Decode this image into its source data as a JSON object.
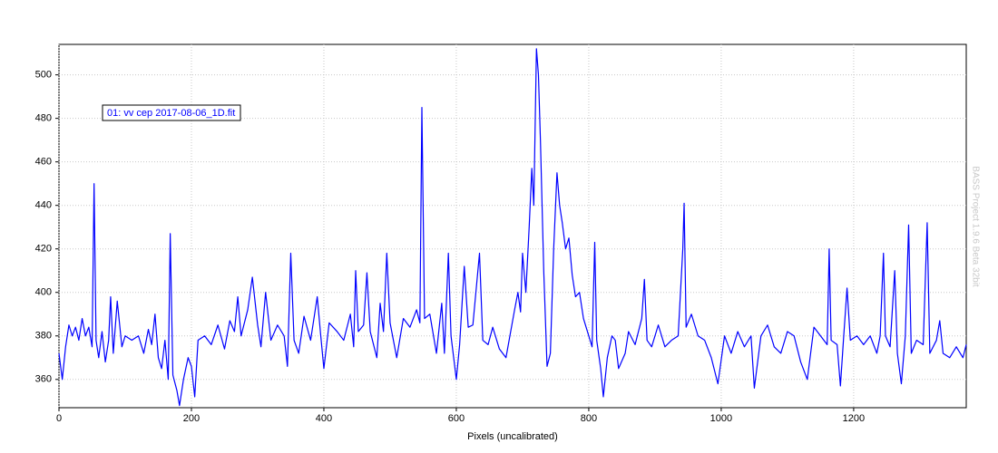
{
  "chart_data": {
    "type": "line",
    "x_label": "Pixels (uncalibrated)",
    "watermark": "BASS Project 1.9.6 Beta 32bit",
    "xlim": [
      0,
      1370
    ],
    "xticks": [
      0,
      200,
      400,
      600,
      800,
      1000,
      1200
    ],
    "ylim": [
      347,
      514
    ],
    "yticks": [
      360,
      380,
      400,
      420,
      440,
      460,
      480,
      500
    ],
    "grid": true,
    "x": [
      0,
      5,
      10,
      15,
      20,
      25,
      30,
      35,
      40,
      45,
      50,
      53,
      56,
      60,
      65,
      70,
      75,
      78,
      82,
      88,
      95,
      100,
      110,
      120,
      128,
      135,
      140,
      145,
      150,
      155,
      160,
      165,
      168,
      172,
      178,
      182,
      188,
      195,
      200,
      205,
      210,
      220,
      230,
      240,
      250,
      258,
      265,
      270,
      275,
      285,
      292,
      300,
      305,
      312,
      320,
      330,
      340,
      345,
      350,
      355,
      362,
      370,
      380,
      390,
      395,
      400,
      408,
      420,
      430,
      440,
      445,
      448,
      452,
      460,
      465,
      470,
      480,
      485,
      490,
      495,
      500,
      510,
      520,
      530,
      540,
      545,
      548,
      552,
      560,
      570,
      578,
      582,
      588,
      592,
      600,
      605,
      612,
      618,
      625,
      635,
      640,
      648,
      655,
      665,
      675,
      688,
      693,
      697,
      700,
      705,
      710,
      714,
      717,
      721,
      724,
      727,
      732,
      737,
      742,
      747,
      752,
      756,
      760,
      765,
      770,
      775,
      780,
      786,
      792,
      798,
      805,
      809,
      812,
      818,
      822,
      828,
      835,
      840,
      845,
      855,
      860,
      870,
      880,
      884,
      888,
      895,
      905,
      915,
      925,
      935,
      942,
      944,
      947,
      955,
      965,
      975,
      985,
      995,
      1005,
      1015,
      1025,
      1035,
      1045,
      1050,
      1060,
      1070,
      1080,
      1090,
      1100,
      1110,
      1120,
      1130,
      1140,
      1150,
      1160,
      1163,
      1166,
      1175,
      1180,
      1185,
      1190,
      1195,
      1205,
      1215,
      1225,
      1235,
      1240,
      1245,
      1248,
      1255,
      1262,
      1266,
      1272,
      1278,
      1283,
      1287,
      1295,
      1305,
      1311,
      1315,
      1325,
      1330,
      1335,
      1345,
      1355,
      1365,
      1370
    ],
    "series": [
      {
        "name": "01: vv cep 2017-08-06_1D.fit",
        "color": "#0000ff",
        "values": [
          372,
          360,
          375,
          385,
          380,
          384,
          378,
          388,
          380,
          384,
          375,
          450,
          378,
          370,
          382,
          368,
          378,
          398,
          372,
          396,
          375,
          380,
          378,
          380,
          372,
          383,
          376,
          390,
          370,
          365,
          378,
          360,
          427,
          362,
          355,
          348,
          360,
          370,
          366,
          352,
          378,
          380,
          376,
          385,
          374,
          387,
          382,
          398,
          380,
          392,
          407,
          385,
          375,
          400,
          378,
          385,
          380,
          366,
          418,
          378,
          372,
          389,
          378,
          398,
          381,
          365,
          386,
          382,
          378,
          390,
          375,
          410,
          382,
          385,
          409,
          382,
          370,
          395,
          382,
          418,
          386,
          370,
          388,
          384,
          392,
          386,
          485,
          388,
          390,
          372,
          395,
          372,
          418,
          380,
          360,
          376,
          412,
          384,
          385,
          418,
          378,
          376,
          384,
          374,
          370,
          392,
          400,
          391,
          418,
          400,
          430,
          457,
          440,
          512,
          500,
          470,
          410,
          366,
          372,
          420,
          455,
          440,
          432,
          420,
          425,
          408,
          398,
          400,
          388,
          382,
          375,
          423,
          378,
          365,
          352,
          370,
          380,
          378,
          365,
          372,
          382,
          376,
          388,
          406,
          378,
          375,
          385,
          375,
          378,
          380,
          420,
          441,
          384,
          390,
          380,
          378,
          370,
          358,
          380,
          372,
          382,
          375,
          380,
          356,
          380,
          385,
          375,
          372,
          382,
          380,
          368,
          360,
          384,
          380,
          376,
          420,
          378,
          376,
          357,
          380,
          402,
          378,
          380,
          376,
          380,
          372,
          380,
          418,
          380,
          375,
          410,
          372,
          358,
          380,
          431,
          372,
          378,
          376,
          432,
          372,
          378,
          387,
          372,
          370,
          375,
          370,
          376
        ]
      }
    ]
  }
}
